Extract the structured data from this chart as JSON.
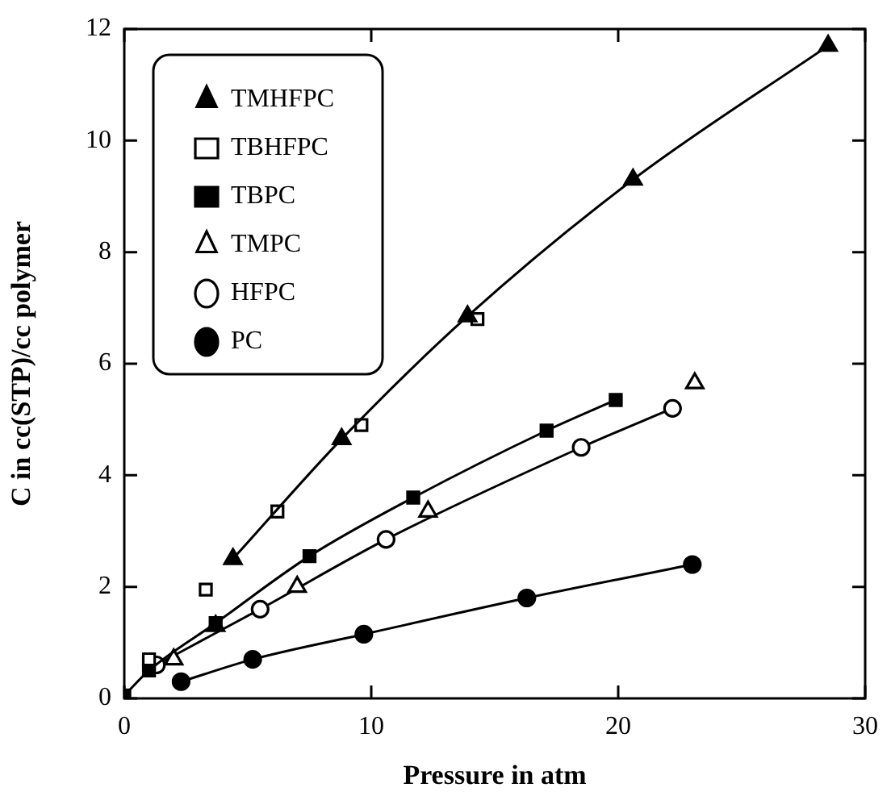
{
  "chart_data": {
    "type": "line",
    "xlabel": "Pressure in atm",
    "ylabel": "C in cc(STP)/cc polymer",
    "xlim": [
      0,
      30
    ],
    "xticks": [
      0,
      10,
      20,
      30
    ],
    "ylim": [
      0,
      12
    ],
    "yticks": [
      0,
      2,
      4,
      6,
      8,
      10,
      12
    ],
    "grid": false,
    "legend": "top left",
    "series": [
      {
        "name": "TMHFPC",
        "color": "#000000",
        "marker": "triangle",
        "type": "line",
        "x": [
          4.4,
          8.8,
          13.9,
          20.6,
          28.5
        ],
        "values": [
          2.5,
          4.65,
          6.85,
          9.3,
          11.7
        ]
      },
      {
        "name": "TBHFPC",
        "color": "#ffffff",
        "marker": "square",
        "type": "scatter",
        "x": [
          1.0,
          3.3,
          6.2,
          9.6,
          14.3
        ],
        "values": [
          0.7,
          1.95,
          3.35,
          4.9,
          6.8
        ]
      },
      {
        "name": "TBPC",
        "color": "#000000",
        "marker": "square",
        "type": "line",
        "x": [
          0,
          1.0,
          3.7,
          7.5,
          11.7,
          17.1,
          19.9
        ],
        "values": [
          0.05,
          0.5,
          1.35,
          2.55,
          3.6,
          4.8,
          5.35
        ]
      },
      {
        "name": "TMPC",
        "color": "#ffffff",
        "marker": "triangle",
        "type": "scatter",
        "x": [
          2.0,
          3.7,
          7.0,
          12.3,
          23.1
        ],
        "values": [
          0.7,
          1.3,
          2.0,
          3.35,
          5.65
        ]
      },
      {
        "name": "HFPC",
        "color": "#ffffff",
        "marker": "circle",
        "type": "line",
        "x": [
          1.3,
          5.5,
          10.6,
          18.5,
          22.2
        ],
        "values": [
          0.6,
          1.6,
          2.85,
          4.5,
          5.2
        ]
      },
      {
        "name": "PC",
        "color": "#000000",
        "marker": "circle",
        "type": "line",
        "x": [
          2.3,
          5.2,
          9.7,
          16.3,
          23.0
        ],
        "values": [
          0.3,
          0.7,
          1.15,
          1.8,
          2.4
        ]
      }
    ]
  }
}
